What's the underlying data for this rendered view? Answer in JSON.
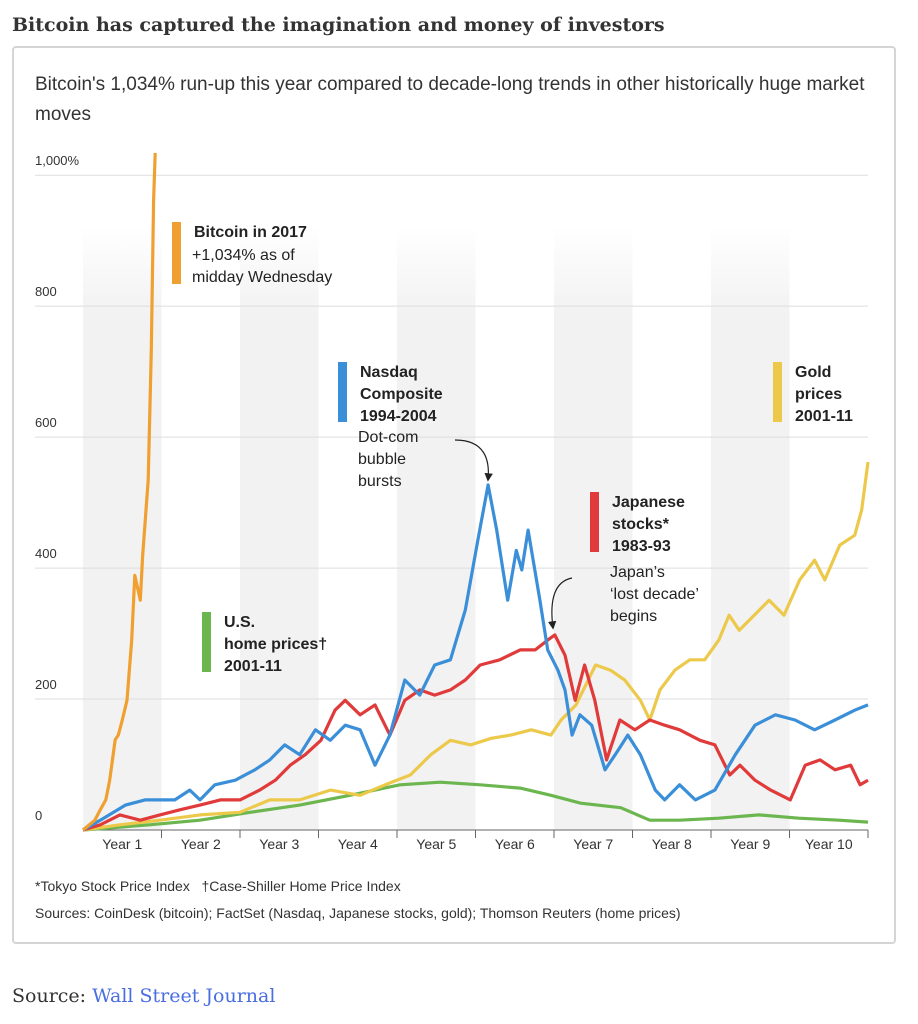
{
  "heading": "Bitcoin has captured the imagination and money of investors",
  "chart_data": {
    "type": "line",
    "title": "Bitcoin's 1,034% run-up this year compared to decade-long trends in other historically huge market moves",
    "xlim": [
      0,
      10
    ],
    "xticks": [
      {
        "value": 0.5,
        "label": "Year 1"
      },
      {
        "value": 1.5,
        "label": "Year 2"
      },
      {
        "value": 2.5,
        "label": "Year 3"
      },
      {
        "value": 3.5,
        "label": "Year 4"
      },
      {
        "value": 4.5,
        "label": "Year 5"
      },
      {
        "value": 5.5,
        "label": "Year 6"
      },
      {
        "value": 6.5,
        "label": "Year 7"
      },
      {
        "value": 7.5,
        "label": "Year 8"
      },
      {
        "value": 8.5,
        "label": "Year 9"
      },
      {
        "value": 9.5,
        "label": "Year 10"
      }
    ],
    "ylim": [
      0,
      1040
    ],
    "yticks": [
      0,
      200,
      400,
      600,
      800,
      {
        "value": 1000,
        "label": "1,000%"
      }
    ],
    "grid": true,
    "series": [
      {
        "name": "U.S.\nhome prices†\n2001-11",
        "color": "#6cb64f",
        "x": [
          0,
          0.85,
          1.49,
          2.13,
          2.76,
          3.4,
          4.04,
          4.55,
          5.06,
          5.57,
          5.96,
          6.34,
          6.85,
          7.22,
          7.6,
          8.1,
          8.61,
          9.12,
          9.63,
          10
        ],
        "values": [
          0,
          8,
          15,
          27,
          38,
          53,
          69,
          73,
          69,
          64,
          53,
          41,
          34,
          15,
          15,
          18,
          23,
          18,
          15,
          12
        ]
      },
      {
        "name": "Gold\nprices\n2001-11",
        "color": "#ecc94b",
        "x": [
          0,
          0.47,
          0.98,
          1.49,
          2.0,
          2.38,
          2.76,
          3.15,
          3.53,
          3.85,
          4.17,
          4.43,
          4.68,
          4.94,
          5.2,
          5.45,
          5.71,
          5.96,
          6.09,
          6.28,
          6.53,
          6.72,
          6.9,
          7.1,
          7.22,
          7.35,
          7.54,
          7.73,
          7.92,
          8.1,
          8.23,
          8.36,
          8.55,
          8.74,
          8.93,
          9.13,
          9.32,
          9.45,
          9.64,
          9.83,
          9.92,
          10
        ],
        "values": [
          0,
          8,
          15,
          23,
          27,
          46,
          46,
          61,
          53,
          69,
          84,
          115,
          137,
          130,
          140,
          145,
          153,
          145,
          168,
          191,
          252,
          244,
          229,
          198,
          168,
          214,
          244,
          260,
          260,
          290,
          328,
          305,
          328,
          351,
          328,
          382,
          412,
          382,
          435,
          450,
          489,
          562
        ]
      },
      {
        "name": "Japanese\nstocks*\n1983-93",
        "color": "#e03a3a",
        "x": [
          0,
          0.22,
          0.47,
          0.73,
          0.98,
          1.24,
          1.49,
          1.75,
          2.0,
          2.25,
          2.45,
          2.64,
          2.83,
          3.03,
          3.21,
          3.34,
          3.53,
          3.72,
          3.91,
          4.1,
          4.29,
          4.48,
          4.68,
          4.87,
          5.06,
          5.31,
          5.57,
          5.76,
          5.92,
          6.01,
          6.14,
          6.27,
          6.39,
          6.52,
          6.67,
          6.84,
          7.03,
          7.22,
          7.41,
          7.6,
          7.86,
          8.05,
          8.24,
          8.37,
          8.56,
          8.76,
          9.01,
          9.2,
          9.39,
          9.58,
          9.78,
          9.9,
          10
        ],
        "values": [
          0,
          8,
          23,
          15,
          23,
          31,
          38,
          46,
          46,
          61,
          76,
          99,
          115,
          137,
          183,
          198,
          176,
          191,
          145,
          198,
          214,
          206,
          214,
          229,
          252,
          260,
          275,
          275,
          290,
          298,
          267,
          198,
          252,
          198,
          107,
          168,
          153,
          168,
          160,
          153,
          137,
          130,
          84,
          99,
          76,
          61,
          46,
          99,
          107,
          92,
          99,
          69,
          76
        ]
      },
      {
        "name": "Nasdaq\nComposite\n1994-2004",
        "color": "#3a8fd8",
        "x": [
          0,
          0.22,
          0.54,
          0.79,
          1.17,
          1.36,
          1.49,
          1.68,
          1.94,
          2.19,
          2.38,
          2.57,
          2.76,
          2.96,
          3.15,
          3.34,
          3.53,
          3.72,
          3.91,
          4.1,
          4.29,
          4.48,
          4.68,
          4.87,
          5.03,
          5.16,
          5.27,
          5.41,
          5.52,
          5.59,
          5.67,
          5.82,
          5.92,
          6.05,
          6.14,
          6.23,
          6.33,
          6.48,
          6.65,
          6.78,
          6.94,
          7.1,
          7.29,
          7.41,
          7.6,
          7.8,
          8.05,
          8.31,
          8.56,
          8.82,
          9.07,
          9.32,
          9.58,
          9.83,
          10
        ],
        "values": [
          0,
          15,
          38,
          46,
          46,
          61,
          46,
          69,
          76,
          92,
          107,
          130,
          115,
          153,
          137,
          160,
          153,
          99,
          145,
          229,
          206,
          252,
          260,
          336,
          443,
          527,
          458,
          351,
          427,
          397,
          458,
          351,
          275,
          244,
          214,
          145,
          176,
          160,
          92,
          115,
          145,
          115,
          61,
          46,
          69,
          46,
          61,
          115,
          160,
          176,
          168,
          153,
          168,
          183,
          191
        ]
      },
      {
        "name": "Bitcoin in 2017",
        "color": "#f0a030",
        "x": [
          0,
          0.15,
          0.22,
          0.29,
          0.34,
          0.41,
          0.45,
          0.5,
          0.56,
          0.62,
          0.66,
          0.73,
          0.76,
          0.83,
          0.87,
          0.9,
          0.92
        ],
        "values": [
          0,
          15,
          31,
          46,
          76,
          138,
          145,
          168,
          198,
          290,
          389,
          351,
          420,
          534,
          733,
          962,
          1034
        ]
      }
    ],
    "annotations": [
      "+1,034% as of\nmidday Wednesday",
      "Dot-com\nbubble\nbursts",
      "Japan’s\n‘lost decade’\nbegins"
    ],
    "footnote": "*Tokyo Stock Price Index   †Case-Shiller Home Price Index",
    "sources": "Sources: CoinDesk (bitcoin); FactSet (Nasdaq, Japanese stocks, gold); Thomson Reuters (home prices)"
  },
  "source": {
    "label": "Source:",
    "link": "Wall Street Journal"
  }
}
